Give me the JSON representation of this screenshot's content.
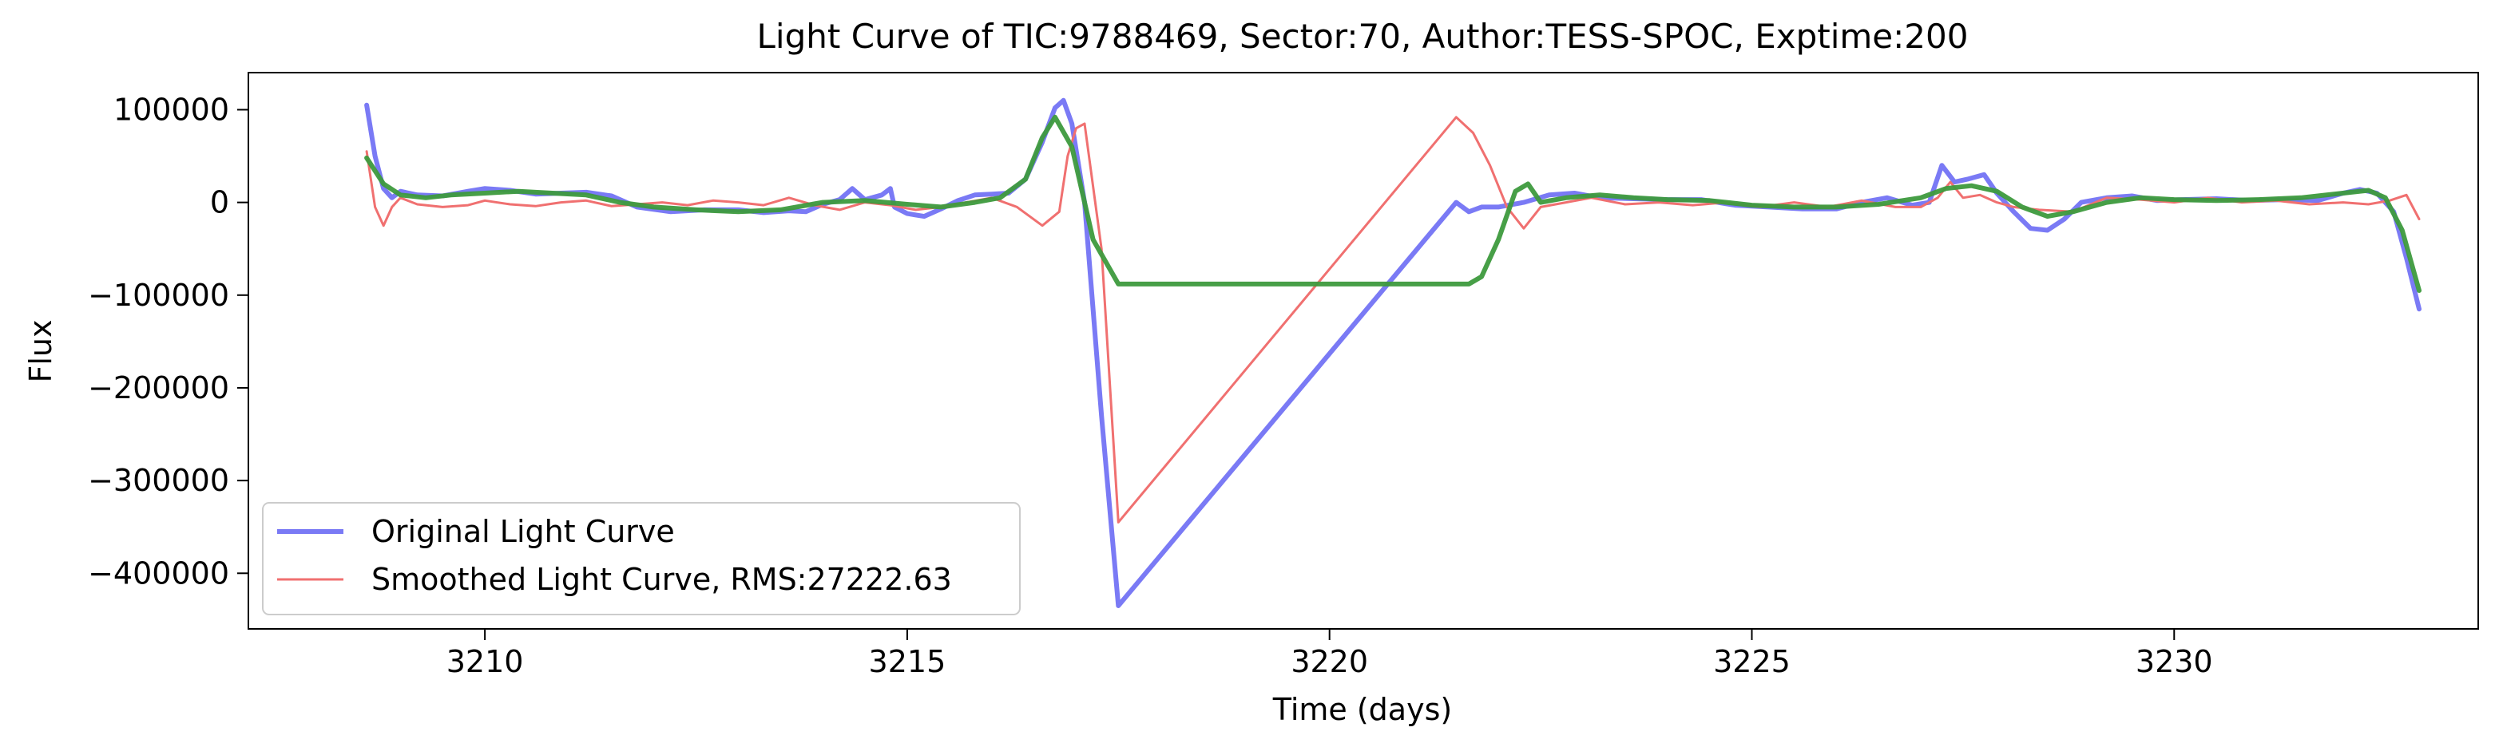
{
  "chart_data": {
    "type": "line",
    "title": "Light Curve of TIC:9788469, Sector:70, Author:TESS-SPOC, Exptime:200",
    "xlabel": "Time (days)",
    "ylabel": "Flux",
    "xlim": [
      3207.2,
      3233.6
    ],
    "ylim": [
      -460000,
      140000
    ],
    "xticks": [
      3210,
      3215,
      3220,
      3225,
      3230
    ],
    "xtick_labels": [
      "3210",
      "3215",
      "3220",
      "3225",
      "3230"
    ],
    "yticks": [
      100000,
      0,
      -100000,
      -200000,
      -300000,
      -400000
    ],
    "ytick_labels": [
      "100000",
      "0",
      "−100000",
      "−200000",
      "−300000",
      "−400000"
    ],
    "grid": false,
    "legend": {
      "placement": "lower-left",
      "entries": [
        "Original Light Curve",
        "Smoothed Light Curve, RMS:27222.63"
      ]
    },
    "series": [
      {
        "name": "Original Light Curve",
        "color": "#7a7af5",
        "x": [
          3208.6,
          3208.7,
          3208.8,
          3208.9,
          3209.0,
          3209.2,
          3209.5,
          3209.8,
          3210.0,
          3210.3,
          3210.6,
          3210.9,
          3211.2,
          3211.5,
          3211.8,
          3212.2,
          3212.6,
          3213.0,
          3213.3,
          3213.6,
          3213.8,
          3214.0,
          3214.2,
          3214.35,
          3214.5,
          3214.7,
          3214.8,
          3214.85,
          3215.0,
          3215.2,
          3215.4,
          3215.6,
          3215.8,
          3216.0,
          3216.2,
          3216.4,
          3216.6,
          3216.75,
          3216.85,
          3216.95,
          3217.1,
          3217.3,
          3217.5,
          3221.5,
          3221.65,
          3221.8,
          3222.0,
          3222.3,
          3222.6,
          3222.9,
          3223.2,
          3223.6,
          3224.0,
          3224.4,
          3224.8,
          3225.2,
          3225.6,
          3226.0,
          3226.3,
          3226.6,
          3226.9,
          3227.1,
          3227.25,
          3227.4,
          3227.55,
          3227.75,
          3227.9,
          3228.1,
          3228.3,
          3228.5,
          3228.7,
          3228.9,
          3229.2,
          3229.5,
          3229.8,
          3230.1,
          3230.5,
          3230.9,
          3231.3,
          3231.7,
          3232.0,
          3232.2,
          3232.4,
          3232.6,
          3232.75,
          3232.9
        ],
        "y": [
          105000,
          50000,
          15000,
          5000,
          12000,
          8000,
          7000,
          12000,
          15000,
          13000,
          9000,
          10000,
          11000,
          7000,
          -5000,
          -10000,
          -8000,
          -8000,
          -11000,
          -9000,
          -10000,
          -2000,
          3000,
          15000,
          3000,
          8000,
          15000,
          -5000,
          -12000,
          -15000,
          -7000,
          2000,
          8000,
          9000,
          10000,
          25000,
          65000,
          102000,
          110000,
          85000,
          0,
          -230000,
          -435000,
          0,
          -10000,
          -5000,
          -5000,
          0,
          8000,
          10000,
          5000,
          4000,
          3000,
          3000,
          -3000,
          -5000,
          -7000,
          -7000,
          0,
          5000,
          -3000,
          0,
          40000,
          22000,
          25000,
          30000,
          10000,
          -10000,
          -28000,
          -30000,
          -18000,
          0,
          5000,
          7000,
          2000,
          3000,
          4000,
          2000,
          3000,
          2000,
          10000,
          14000,
          10000,
          -10000,
          -60000,
          -115000
        ]
      },
      {
        "name": "Smoothed Light Curve, RMS:27222.63",
        "color": "#f07070",
        "x": [
          3208.6,
          3208.7,
          3208.8,
          3208.9,
          3209.0,
          3209.2,
          3209.5,
          3209.8,
          3210.0,
          3210.3,
          3210.6,
          3210.9,
          3211.2,
          3211.5,
          3211.8,
          3212.1,
          3212.4,
          3212.7,
          3213.0,
          3213.3,
          3213.6,
          3213.9,
          3214.2,
          3214.5,
          3214.8,
          3215.1,
          3215.4,
          3215.7,
          3216.0,
          3216.3,
          3216.6,
          3216.8,
          3216.9,
          3217.0,
          3217.1,
          3217.3,
          3217.5,
          3221.5,
          3221.7,
          3221.9,
          3222.1,
          3222.3,
          3222.5,
          3222.8,
          3223.1,
          3223.5,
          3223.9,
          3224.3,
          3224.7,
          3225.1,
          3225.5,
          3225.9,
          3226.3,
          3226.7,
          3227.0,
          3227.2,
          3227.35,
          3227.5,
          3227.7,
          3227.9,
          3228.1,
          3228.4,
          3228.8,
          3229.2,
          3229.6,
          3230.0,
          3230.4,
          3230.8,
          3231.2,
          3231.6,
          3232.0,
          3232.3,
          3232.55,
          3232.75,
          3232.9
        ],
        "y": [
          55000,
          -5000,
          -25000,
          -5000,
          5000,
          -2000,
          -5000,
          -3000,
          2000,
          -2000,
          -4000,
          0,
          2000,
          -4000,
          -2000,
          0,
          -3000,
          2000,
          0,
          -3000,
          5000,
          -3000,
          -8000,
          0,
          -3000,
          -8000,
          -5000,
          0,
          5000,
          -5000,
          -25000,
          -10000,
          50000,
          80000,
          85000,
          -50000,
          -345000,
          92000,
          75000,
          40000,
          -5000,
          -28000,
          -5000,
          0,
          5000,
          -2000,
          0,
          -3000,
          0,
          -5000,
          0,
          -5000,
          2000,
          -5000,
          -5000,
          5000,
          22000,
          5000,
          8000,
          0,
          -5000,
          -8000,
          -10000,
          5000,
          3000,
          0,
          5000,
          0,
          2000,
          -2000,
          0,
          -2000,
          2000,
          8000,
          -18000
        ]
      },
      {
        "name": "",
        "color": "#3d9a3d",
        "x": [
          3208.6,
          3208.8,
          3209.0,
          3209.3,
          3209.6,
          3210.0,
          3210.4,
          3210.8,
          3211.2,
          3211.6,
          3212.0,
          3212.5,
          3213.0,
          3213.5,
          3214.0,
          3214.5,
          3215.0,
          3215.4,
          3215.8,
          3216.1,
          3216.4,
          3216.6,
          3216.75,
          3216.95,
          3217.2,
          3217.5,
          3221.5,
          3221.65,
          3221.8,
          3222.0,
          3222.2,
          3222.35,
          3222.5,
          3222.8,
          3223.2,
          3223.6,
          3224.0,
          3224.5,
          3225.0,
          3225.5,
          3226.0,
          3226.5,
          3227.0,
          3227.3,
          3227.6,
          3227.9,
          3228.2,
          3228.5,
          3228.8,
          3229.2,
          3229.6,
          3230.0,
          3230.5,
          3231.0,
          3231.5,
          3232.0,
          3232.3,
          3232.5,
          3232.7,
          3232.9
        ],
        "y": [
          48000,
          20000,
          8000,
          5000,
          8000,
          10000,
          12000,
          10000,
          8000,
          0,
          -5000,
          -8000,
          -10000,
          -8000,
          0,
          2000,
          -2000,
          -5000,
          0,
          5000,
          25000,
          70000,
          92000,
          60000,
          -40000,
          -88000,
          -88000,
          -88000,
          -80000,
          -40000,
          12000,
          20000,
          0,
          5000,
          8000,
          5000,
          3000,
          2000,
          -3000,
          -5000,
          -5000,
          -2000,
          5000,
          15000,
          18000,
          12000,
          -5000,
          -15000,
          -10000,
          0,
          5000,
          3000,
          2000,
          3000,
          5000,
          10000,
          13000,
          5000,
          -30000,
          -95000
        ]
      }
    ]
  }
}
